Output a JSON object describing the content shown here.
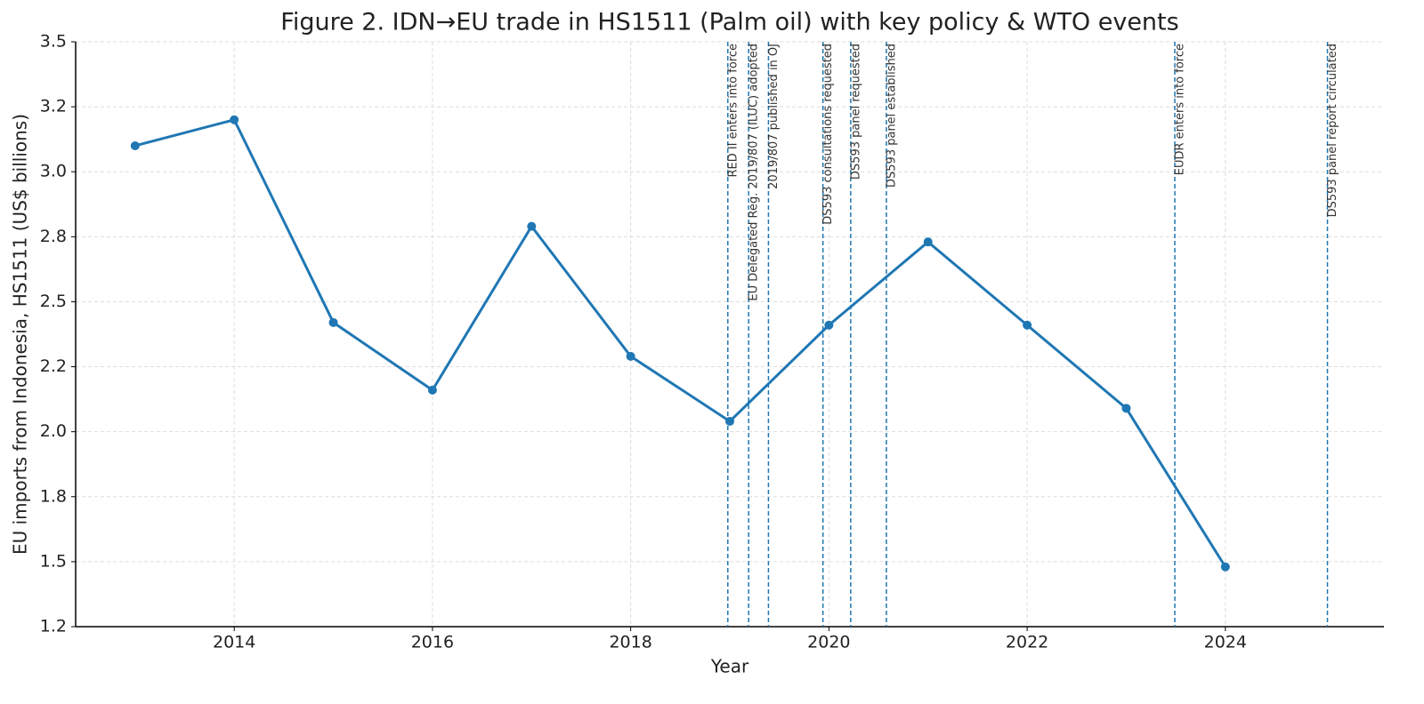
{
  "chart_data": {
    "type": "line",
    "title": "Figure 2. IDN→EU trade in HS1511 (Palm oil) with key policy & WTO events",
    "x_label": "Year",
    "y_label": "EU imports from Indonesia, HS1511 (US$ billions)",
    "x": [
      2013,
      2014,
      2015,
      2016,
      2017,
      2018,
      2019,
      2020,
      2021,
      2022,
      2023,
      2024
    ],
    "series": [
      {
        "name": "EU imports",
        "color": "#1f77b4",
        "values": [
          3.1,
          3.2,
          2.42,
          2.16,
          2.79,
          2.29,
          2.04,
          2.41,
          2.73,
          2.41,
          2.09,
          1.48
        ]
      }
    ],
    "xlim": [
      2012.4,
      2025.6
    ],
    "xticks": [
      2014,
      2016,
      2018,
      2020,
      2022,
      2024
    ],
    "ylim": [
      1.25,
      3.5
    ],
    "yticks": [
      {
        "value": 1.25,
        "label": "1.2"
      },
      1.5,
      {
        "value": 1.75,
        "label": "1.8"
      },
      {
        "value": 2.0,
        "label": "2.0"
      },
      {
        "value": 2.25,
        "label": "2.2"
      },
      2.5,
      {
        "value": 2.75,
        "label": "2.8"
      },
      {
        "value": 3.0,
        "label": "3.0"
      },
      {
        "value": 3.25,
        "label": "3.2"
      },
      3.5
    ],
    "grid": true,
    "events": [
      {
        "x": 2018.98,
        "label": "RED II enters into force"
      },
      {
        "x": 2019.19,
        "label": "EU Delegated Reg. 2019/807 (ILUC) adopted"
      },
      {
        "x": 2019.39,
        "label": "2019/807 published in OJ"
      },
      {
        "x": 2019.94,
        "label": "DS593 consultations requested"
      },
      {
        "x": 2020.22,
        "label": "DS593 panel requested"
      },
      {
        "x": 2020.58,
        "label": "DS593 panel established"
      },
      {
        "x": 2023.49,
        "label": "EUDR enters into force"
      },
      {
        "x": 2025.03,
        "label": "DS593 panel report circulated"
      }
    ]
  }
}
